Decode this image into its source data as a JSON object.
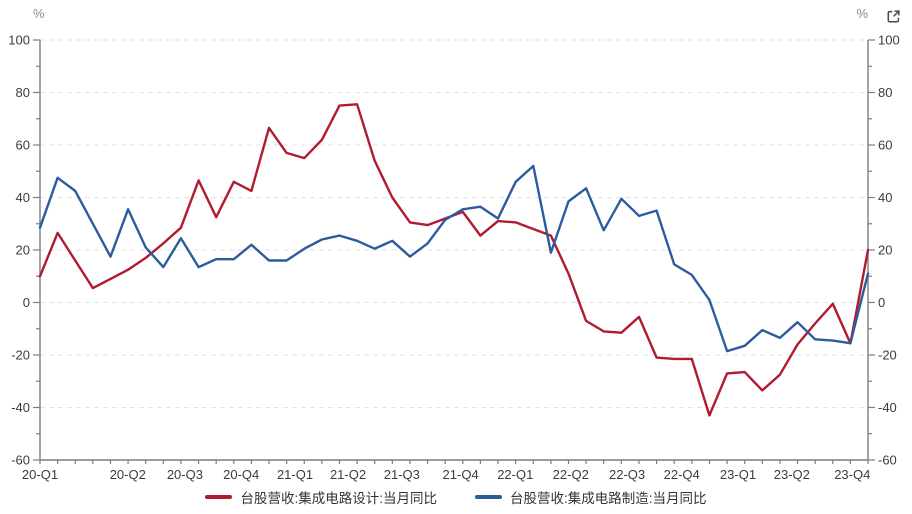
{
  "window": {
    "y_unit_left": "%",
    "y_unit_right": "%"
  },
  "icons": {
    "external_link_icon": "open-in-new-window"
  },
  "chart_data": {
    "type": "line",
    "title": "",
    "x_months": [
      "2020-01",
      "2020-02",
      "2020-03",
      "2020-04",
      "2020-05",
      "2020-06",
      "2020-07",
      "2020-08",
      "2020-09",
      "2020-10",
      "2020-11",
      "2020-12",
      "2021-01",
      "2021-02",
      "2021-03",
      "2021-04",
      "2021-05",
      "2021-06",
      "2021-07",
      "2021-08",
      "2021-09",
      "2021-10",
      "2021-11",
      "2021-12",
      "2022-01",
      "2022-02",
      "2022-03",
      "2022-04",
      "2022-05",
      "2022-06",
      "2022-07",
      "2022-08",
      "2022-09",
      "2022-10",
      "2022-11",
      "2022-12",
      "2023-01",
      "2023-02",
      "2023-03",
      "2023-04",
      "2023-05",
      "2023-06",
      "2023-07",
      "2023-08",
      "2023-09",
      "2023-10",
      "2023-11",
      "2023-12"
    ],
    "series": [
      {
        "name": "台股营收:集成电路设计:当月同比",
        "color": "#b01b30",
        "values": [
          10,
          26.5,
          16,
          5.5,
          9,
          12.5,
          17,
          22.5,
          28.5,
          46.5,
          32.5,
          46,
          42.5,
          66.5,
          57,
          55,
          62,
          75,
          75.5,
          54,
          40,
          30.5,
          29.5,
          32,
          34.5,
          25.5,
          31,
          30.5,
          28,
          25.5,
          11,
          -7,
          -11,
          -11.5,
          -5.5,
          -21,
          -21.5,
          -21.5,
          -43,
          -27,
          -26.5,
          -33.5,
          -27.5,
          -16,
          -8,
          -0.5,
          -15.5,
          20
        ]
      },
      {
        "name": "台股营收:集成电路制造:当月同比",
        "color": "#2d5c9e",
        "values": [
          28.5,
          47.5,
          42.5,
          30,
          17.5,
          35.5,
          21,
          13.5,
          24.5,
          13.5,
          16.5,
          16.5,
          22,
          16,
          16,
          20.5,
          24,
          25.5,
          23.5,
          20.5,
          23.5,
          17.5,
          22.5,
          31.5,
          35.5,
          36.5,
          32,
          46,
          52,
          19,
          38.5,
          43.5,
          27.5,
          39.5,
          33,
          35,
          14.5,
          10.5,
          1,
          -18.5,
          -16.5,
          -10.5,
          -13.5,
          -7.5,
          -14,
          -14.5,
          -15.5,
          11
        ]
      }
    ],
    "ylim": [
      -60,
      100
    ],
    "y_ticks": [
      100,
      80,
      60,
      40,
      20,
      0,
      -20,
      -40,
      -60
    ],
    "y_minor_interval": 10,
    "y_axis_sides": "both",
    "grid": "horizontal-dashed",
    "legend_position": "bottom-center",
    "x_tick_labels": [
      {
        "label": "20-Q1",
        "pos": 0.0
      },
      {
        "label": "20-Q2",
        "pos": 0.106
      },
      {
        "label": "20-Q3",
        "pos": 0.175
      },
      {
        "label": "20-Q4",
        "pos": 0.243
      },
      {
        "label": "21-Q1",
        "pos": 0.308
      },
      {
        "label": "21-Q2",
        "pos": 0.372
      },
      {
        "label": "21-Q3",
        "pos": 0.437
      },
      {
        "label": "21-Q4",
        "pos": 0.508
      },
      {
        "label": "22-Q1",
        "pos": 0.574
      },
      {
        "label": "22-Q2",
        "pos": 0.641
      },
      {
        "label": "22-Q3",
        "pos": 0.709
      },
      {
        "label": "22-Q4",
        "pos": 0.775
      },
      {
        "label": "23-Q1",
        "pos": 0.843
      },
      {
        "label": "23-Q2",
        "pos": 0.908
      },
      {
        "label": "23-Q4",
        "pos": 0.981
      }
    ]
  }
}
